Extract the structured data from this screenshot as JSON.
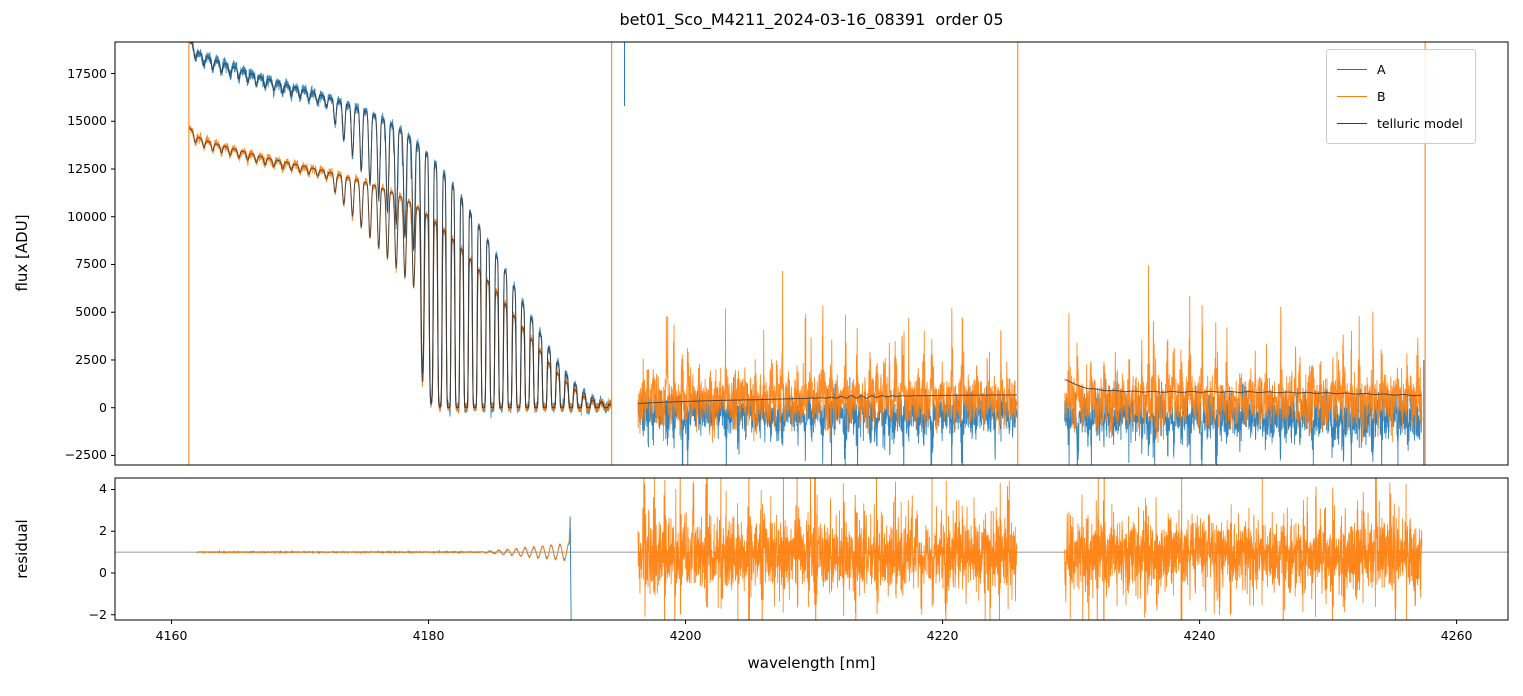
{
  "title": "bet01_Sco_M4211_2024-03-16_08391  order 05",
  "axes": {
    "x": {
      "label": "wavelength [nm]",
      "ticks": [
        4160,
        4180,
        4200,
        4220,
        4240,
        4260
      ],
      "lim": [
        4155.6,
        4264.0
      ]
    },
    "top": {
      "ylabel": "flux [ADU]",
      "ticks": [
        -2500,
        0,
        2500,
        5000,
        7500,
        10000,
        12500,
        15000,
        17500
      ],
      "lim": [
        -3000,
        19150
      ]
    },
    "bottom": {
      "ylabel": "residual",
      "ticks": [
        -2,
        0,
        2,
        4
      ],
      "lim": [
        -2.25,
        4.55
      ]
    }
  },
  "legend": {
    "position": "upper right",
    "entries": [
      {
        "label": "A",
        "color": "#1f77b4"
      },
      {
        "label": "B",
        "color": "#ff7f0e"
      },
      {
        "label": "telluric model",
        "color": "#3a3a3a"
      }
    ]
  },
  "chart_data": [
    {
      "type": "line",
      "title": "bet01_Sco_M4211_2024-03-16_08391  order 05",
      "xlabel": "wavelength [nm]",
      "ylabel": "flux [ADU]",
      "xlim": [
        4155.6,
        4264.0
      ],
      "ylim": [
        -3000,
        19150
      ],
      "xticks": [
        4160,
        4180,
        4200,
        4220,
        4240,
        4260
      ],
      "yticks": [
        -2500,
        0,
        2500,
        5000,
        7500,
        10000,
        12500,
        15000,
        17500
      ],
      "legend_entries": [
        "A",
        "B",
        "telluric model"
      ],
      "series_colors": {
        "A": "#1f77b4",
        "B": "#ff7f0e",
        "telluric_model": "#3a3a3a"
      },
      "segments": {
        "left": {
          "x_range": [
            4161.4,
            4194.2
          ],
          "continuum_A": [
            [
              4161.4,
              19300
            ],
            [
              4162,
              18650
            ],
            [
              4163,
              18300
            ],
            [
              4164,
              18050
            ],
            [
              4165,
              17800
            ],
            [
              4166,
              17550
            ],
            [
              4167,
              17300
            ],
            [
              4168,
              17100
            ],
            [
              4169,
              16900
            ],
            [
              4170,
              16700
            ],
            [
              4171,
              16500
            ],
            [
              4172,
              16300
            ],
            [
              4173,
              16050
            ],
            [
              4174,
              15800
            ],
            [
              4175,
              15550
            ],
            [
              4176,
              15250
            ],
            [
              4177,
              14900
            ],
            [
              4178,
              14450
            ],
            [
              4179,
              13900
            ],
            [
              4180,
              13200
            ],
            [
              4181,
              12400
            ],
            [
              4182,
              11500
            ],
            [
              4183,
              10500
            ],
            [
              4184,
              9400
            ],
            [
              4185,
              8300
            ],
            [
              4186,
              7100
            ],
            [
              4187,
              5900
            ],
            [
              4188,
              4700
            ],
            [
              4189,
              3500
            ],
            [
              4190,
              2400
            ],
            [
              4191,
              1500
            ],
            [
              4192,
              800
            ],
            [
              4193,
              400
            ],
            [
              4194.2,
              180
            ]
          ],
          "B_to_A_ratio": 0.76,
          "telluric_comb": {
            "period_nm": 0.68,
            "phase_ref_nm": 4180.2,
            "weak_until_nm": 4179.0,
            "saturated_from_nm": 4182.0
          },
          "noise_sigma": {
            "A": 130,
            "B": 100
          }
        },
        "mid": {
          "x_range": [
            4196.3,
            4225.8
          ],
          "model": [
            [
              4196.3,
              220
            ],
            [
              4198,
              280
            ],
            [
              4200,
              330
            ],
            [
              4202,
              370
            ],
            [
              4204,
              400
            ],
            [
              4206,
              430
            ],
            [
              4208,
              465
            ],
            [
              4210,
              500
            ],
            [
              4212,
              540
            ],
            [
              4213,
              575
            ],
            [
              4214,
              555
            ],
            [
              4215,
              590
            ],
            [
              4216,
              605
            ],
            [
              4218,
              625
            ],
            [
              4220,
              645
            ],
            [
              4222,
              655
            ],
            [
              4224,
              665
            ],
            [
              4225.8,
              665
            ]
          ],
          "noise": {
            "A_mean": -150,
            "A_sigma": 520,
            "A_spike_depth": 1600,
            "B_mean": 250,
            "B_sigma": 650,
            "B_spike_height": 2300
          }
        },
        "right": {
          "x_range": [
            4229.5,
            4257.3
          ],
          "model": [
            [
              4229.6,
              1480
            ],
            [
              4230.4,
              1180
            ],
            [
              4231.5,
              990
            ],
            [
              4233,
              890
            ],
            [
              4235,
              845
            ],
            [
              4238,
              825
            ],
            [
              4241,
              835
            ],
            [
              4244,
              820
            ],
            [
              4247,
              795
            ],
            [
              4250,
              765
            ],
            [
              4252,
              735
            ],
            [
              4254,
              705
            ],
            [
              4256,
              665
            ],
            [
              4257.3,
              640
            ]
          ],
          "noise": {
            "A_mean": -350,
            "A_sigma": 600,
            "A_spike_depth": 1500,
            "B_mean": 200,
            "B_sigma": 700,
            "B_spike_height": 2300
          }
        }
      },
      "vertical_spikes": [
        {
          "series": "B",
          "x": 4161.35,
          "y": [
            -3000,
            19150
          ]
        },
        {
          "series": "B",
          "x": 4194.25,
          "y": [
            -3000,
            19150
          ]
        },
        {
          "series": "A",
          "x": 4195.25,
          "y": [
            15800,
            19150
          ]
        },
        {
          "series": "B",
          "x": 4225.85,
          "y": [
            -3000,
            19150
          ]
        },
        {
          "series": "A",
          "x": 4257.45,
          "y": [
            -3000,
            2500
          ]
        },
        {
          "series": "B",
          "x": 4257.55,
          "y": [
            -3000,
            19150
          ]
        }
      ]
    },
    {
      "type": "line",
      "xlabel": "wavelength [nm]",
      "ylabel": "residual",
      "xlim": [
        4155.6,
        4264.0
      ],
      "ylim": [
        -2.25,
        4.55
      ],
      "yticks": [
        -2,
        0,
        2,
        4
      ],
      "reference_line_y": 1.0,
      "segments": {
        "left": {
          "x_range": [
            4162.0,
            4190.95
          ],
          "baseline": 1.0,
          "noise_sigma": 0.012,
          "oscillation": {
            "start_nm": 4184.0,
            "period_nm": 0.68,
            "max_amplitude": 0.38
          },
          "end_spikes": {
            "A": [
              [
                4190.97,
                1.5
              ],
              [
                4191.02,
                2.7
              ],
              [
                4191.1,
                -2.6
              ]
            ],
            "B": [
              [
                4190.96,
                1.9
              ],
              [
                4191.0,
                2.35
              ]
            ]
          }
        },
        "mid": {
          "x_range": [
            4196.3,
            4225.8
          ],
          "mean": 0.9,
          "sigma": 0.85,
          "line_spike_amplitude": 2.2
        },
        "right": {
          "x_range": [
            4229.5,
            4257.3
          ],
          "mean": 0.9,
          "sigma": 0.85,
          "line_spike_amplitude": 2.2
        }
      }
    }
  ]
}
